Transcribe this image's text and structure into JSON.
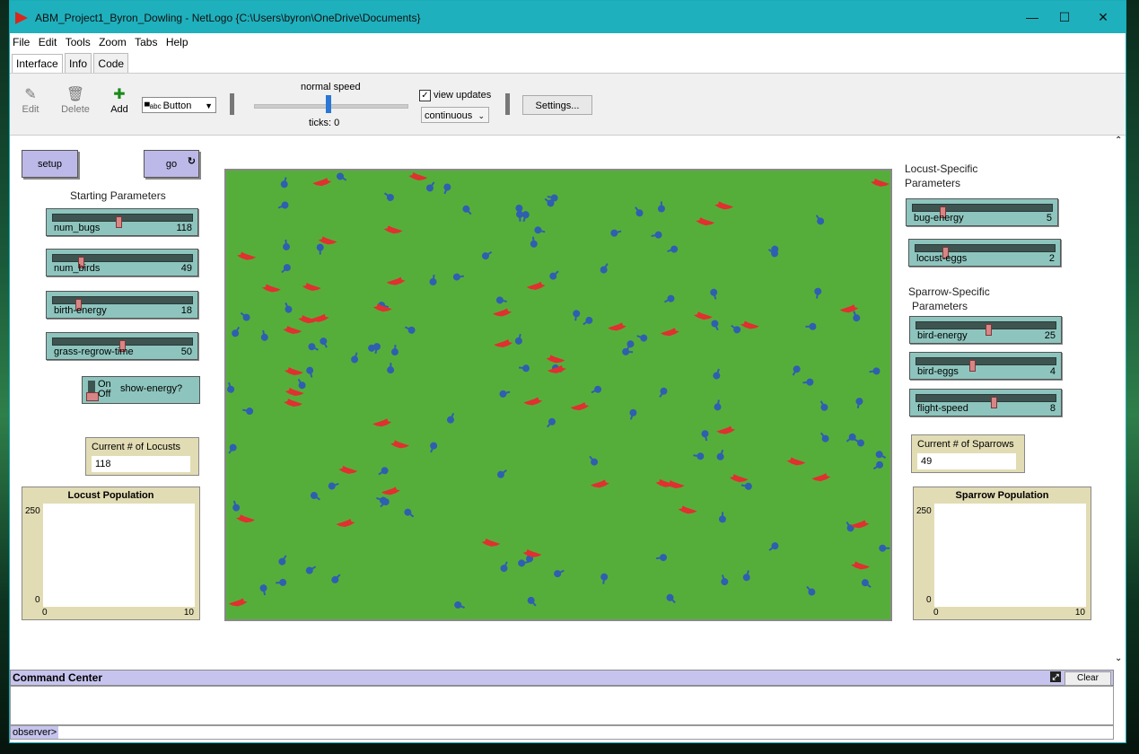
{
  "window": {
    "title": "ABM_Project1_Byron_Dowling - NetLogo {C:\\Users\\byron\\OneDrive\\Documents}",
    "controls": [
      "—",
      "☐",
      "✕"
    ]
  },
  "menu": [
    "File",
    "Edit",
    "Tools",
    "Zoom",
    "Tabs",
    "Help"
  ],
  "tabs": [
    "Interface",
    "Info",
    "Code"
  ],
  "toolbar": {
    "edit": "Edit",
    "delete": "Delete",
    "add": "Add",
    "widget_type": "Button",
    "speed_label": "normal speed",
    "ticks": "ticks: 0",
    "view_updates": "view updates",
    "update_mode": "continuous",
    "settings": "Settings..."
  },
  "left": {
    "setup": "setup",
    "go": "go",
    "starting_params": "Starting Parameters",
    "sliders": [
      {
        "label": "num_bugs",
        "value": "118",
        "frac": 0.47
      },
      {
        "label": "num_birds",
        "value": "49",
        "frac": 0.19
      },
      {
        "label": "birth-energy",
        "value": "18",
        "frac": 0.17
      },
      {
        "label": "grass-regrow-time",
        "value": "50",
        "frac": 0.5
      }
    ],
    "switch": {
      "on": "On",
      "off": "Off",
      "label": "show-energy?"
    },
    "monitor": {
      "label": "Current # of Locusts",
      "value": "118"
    },
    "plot": {
      "title": "Locust Population",
      "ymax": "250",
      "ymin": "0",
      "xmin": "0",
      "xmax": "10"
    }
  },
  "right": {
    "locust_header": [
      "Locust-Specific",
      "Parameters"
    ],
    "locust_sliders": [
      {
        "label": "bug-energy",
        "value": "5",
        "frac": 0.2
      },
      {
        "label": "locust-eggs",
        "value": "2",
        "frac": 0.2
      }
    ],
    "sparrow_header": [
      "Sparrow-Specific",
      "Parameters"
    ],
    "sparrow_sliders": [
      {
        "label": "bird-energy",
        "value": "25",
        "frac": 0.52
      },
      {
        "label": "bird-eggs",
        "value": "4",
        "frac": 0.4
      },
      {
        "label": "flight-speed",
        "value": "8",
        "frac": 0.56
      }
    ],
    "monitor": {
      "label": "Current # of Sparrows",
      "value": "49"
    },
    "plot": {
      "title": "Sparrow Population",
      "ymax": "250",
      "ymin": "0",
      "xmin": "0",
      "xmax": "10"
    }
  },
  "world": {
    "grass_color": "#56ae3a",
    "bug_color": "#2f5fb0",
    "bird_color": "#e03030",
    "bug_count": 118,
    "bird_count": 49
  },
  "command_center": {
    "title": "Command Center",
    "clear": "Clear",
    "prompt": "observer>"
  }
}
